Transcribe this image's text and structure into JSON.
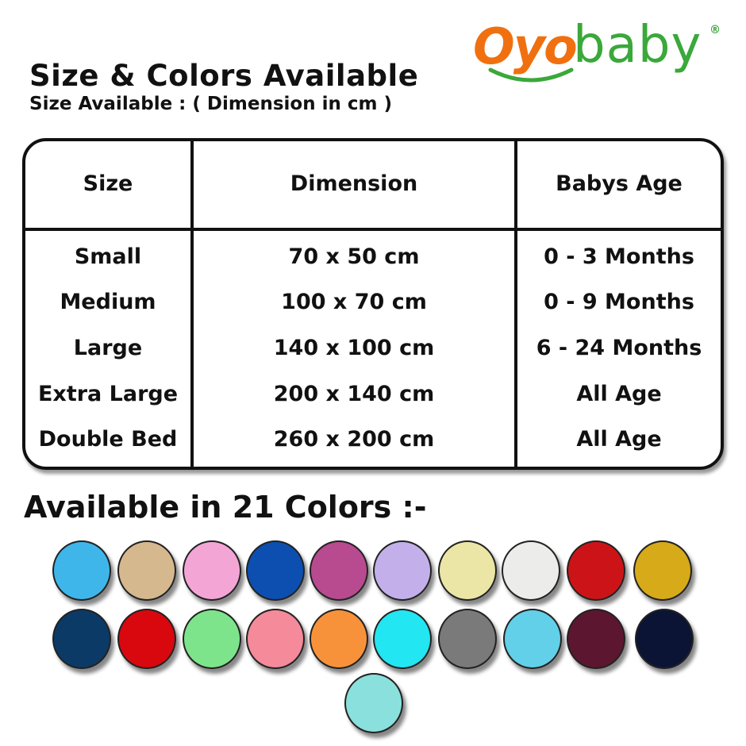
{
  "logo": {
    "brand_orange": "Oyo",
    "brand_green": "baby",
    "registered": "®",
    "colors": {
      "orange": "#f07010",
      "green": "#3aa83a"
    }
  },
  "title": "Size & Colors Available",
  "subtitle": "Size Available : ( Dimension in cm )",
  "table": {
    "headers": [
      "Size",
      "Dimension",
      "Babys Age"
    ],
    "rows": [
      [
        "Small",
        "70 x 50 cm",
        "0 - 3 Months"
      ],
      [
        "Medium",
        "100 x 70 cm",
        "0 - 9 Months"
      ],
      [
        "Large",
        "140 x 100 cm",
        "6 - 24 Months"
      ],
      [
        "Extra Large",
        "200 x 140 cm",
        "All  Age"
      ],
      [
        "Double Bed",
        "260 x 200 cm",
        "All  Age"
      ]
    ]
  },
  "colors_heading": "Available in 21 Colors :-",
  "swatches": [
    "#3fb6ea",
    "#d6b88e",
    "#f3a6d6",
    "#0c4fb0",
    "#b84a90",
    "#c3b0ea",
    "#ebe6a6",
    "#ececea",
    "#cc1418",
    "#d6aa18",
    "#0c3a66",
    "#d8080e",
    "#7ee48c",
    "#f58a9a",
    "#f8923a",
    "#22e6f2",
    "#7a7a7a",
    "#62d0e8",
    "#5c1630",
    "#0c1436",
    "#8ae0dc"
  ]
}
